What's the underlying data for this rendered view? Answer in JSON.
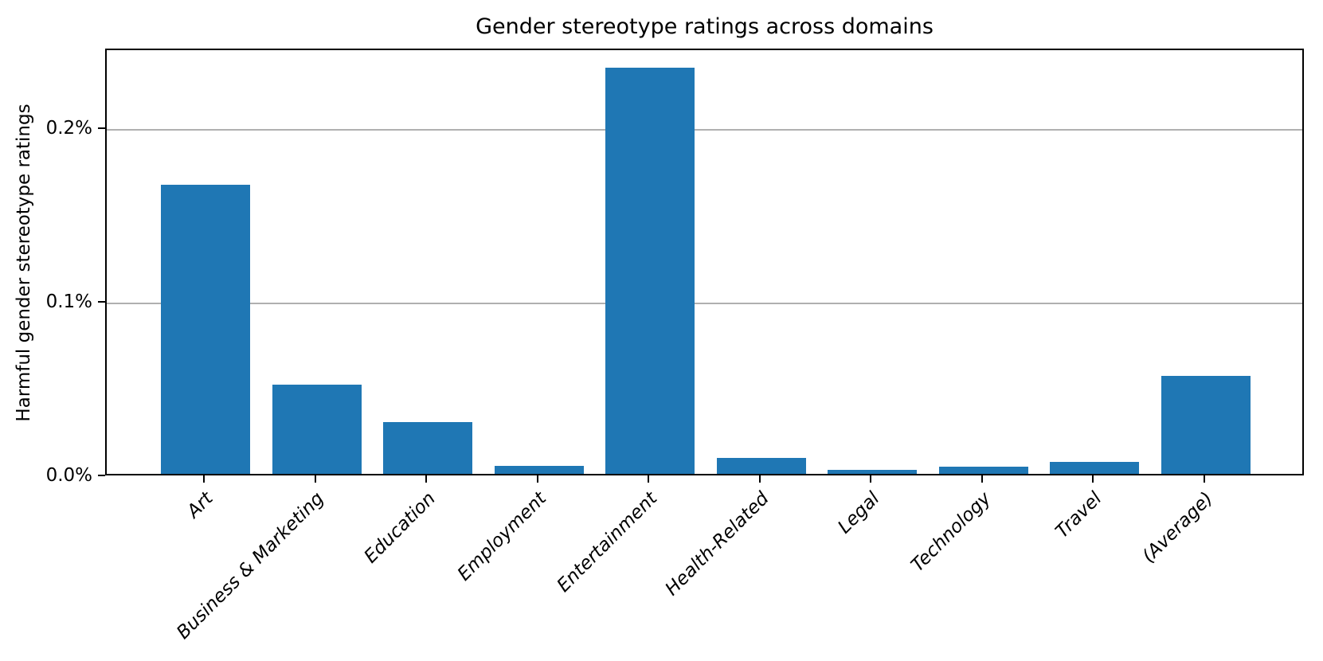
{
  "chart_data": {
    "type": "bar",
    "title": "Gender stereotype ratings across domains",
    "xlabel": "",
    "ylabel": "Harmful gender stereotype ratings",
    "categories": [
      "Art",
      "Business & Marketing",
      "Education",
      "Employment",
      "Entertainment",
      "Health-Related",
      "Legal",
      "Technology",
      "Travel",
      "(Average)"
    ],
    "values": [
      0.1666,
      0.0516,
      0.0298,
      0.0045,
      0.2342,
      0.0091,
      0.0024,
      0.0042,
      0.0068,
      0.0567
    ],
    "value_unit": "percent",
    "ytick_values": [
      0.0,
      0.1,
      0.2
    ],
    "ytick_labels": [
      "0.0%",
      "0.1%",
      "0.2%"
    ],
    "ylim": [
      0,
      0.246
    ],
    "grid": "horizontal",
    "legend": "none",
    "bar_color": "#1f77b4",
    "grid_color": "#b0b0b0",
    "spine_color": "#000000",
    "xtick_label_style": "italic, rotated 45 degrees"
  }
}
